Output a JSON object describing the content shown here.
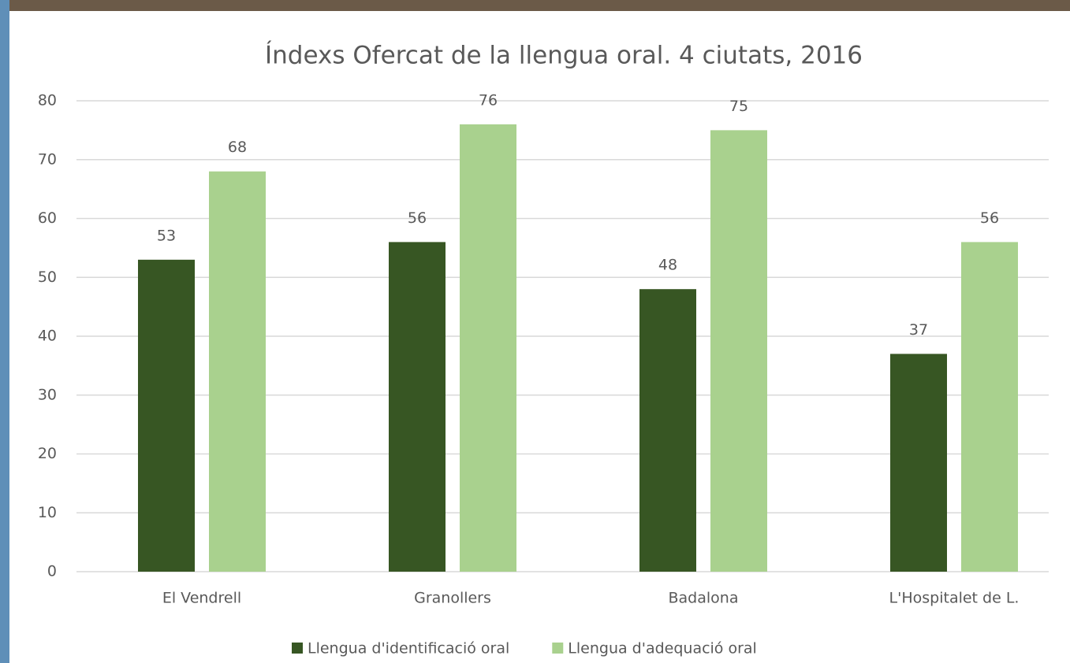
{
  "chart_data": {
    "type": "bar",
    "title": "Índexs Ofercat de la llengua oral. 4 ciutats, 2016",
    "categories": [
      "El Vendrell",
      "Granollers",
      "Badalona",
      "L'Hospitalet de L."
    ],
    "series": [
      {
        "name": "Llengua d'identificació oral",
        "color": "#375623",
        "values": [
          53,
          56,
          48,
          37
        ]
      },
      {
        "name": "Llengua d'adequació oral",
        "color": "#a9d18e",
        "values": [
          68,
          76,
          75,
          56
        ]
      }
    ],
    "ylim": [
      0,
      80
    ],
    "yticks": [
      0,
      10,
      20,
      30,
      40,
      50,
      60,
      70,
      80
    ],
    "grid": true,
    "legend": "bottom"
  }
}
